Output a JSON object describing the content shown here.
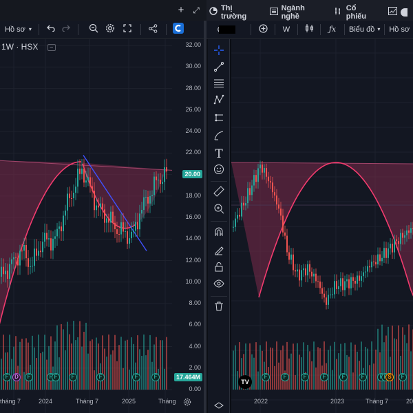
{
  "window": {
    "new_tab": "+",
    "expand": "⤢"
  },
  "tabs": [
    {
      "label": "Thị trường",
      "icon": "pie-chart-icon"
    },
    {
      "label": "Ngành nghề",
      "icon": "list-icon"
    },
    {
      "label": "Cổ phiếu",
      "icon": "stock-icon"
    }
  ],
  "left_toolbar": {
    "profile_label": "Hồ sơ"
  },
  "right_toolbar": {
    "interval": "W",
    "chart_type_label": "Biểu đồ",
    "profile_label": "Hồ sơ"
  },
  "left_chart": {
    "symbol": "1W · HSX",
    "price_axis": [
      "32.00",
      "30.00",
      "28.00",
      "26.00",
      "24.00",
      "22.00",
      "20.00",
      "18.00",
      "16.00",
      "14.00",
      "12.00",
      "10.00",
      "8.00",
      "6.00",
      "4.00",
      "2.00",
      "0.00"
    ],
    "last_price": "20.00",
    "volume_tag": "17.464M",
    "time_axis": [
      "tháng 7",
      "2024",
      "Tháng 7",
      "2025",
      "Tháng"
    ],
    "events": [
      "F",
      "D",
      "F",
      "F",
      "F",
      "F",
      "F",
      "F",
      "F"
    ],
    "colors": {
      "up": "#26a69a",
      "down": "#ef5350",
      "zone": "#7b2a4a",
      "arc": "#f23b6e",
      "trend": "#3f51ff"
    }
  },
  "right_chart": {
    "time_axis": [
      "2022",
      "2023",
      "Tháng 7",
      "20"
    ],
    "events": [
      "F",
      "F",
      "F",
      "F",
      "F",
      "F",
      "F",
      "F",
      "S",
      "F"
    ],
    "logo": "TV"
  }
}
